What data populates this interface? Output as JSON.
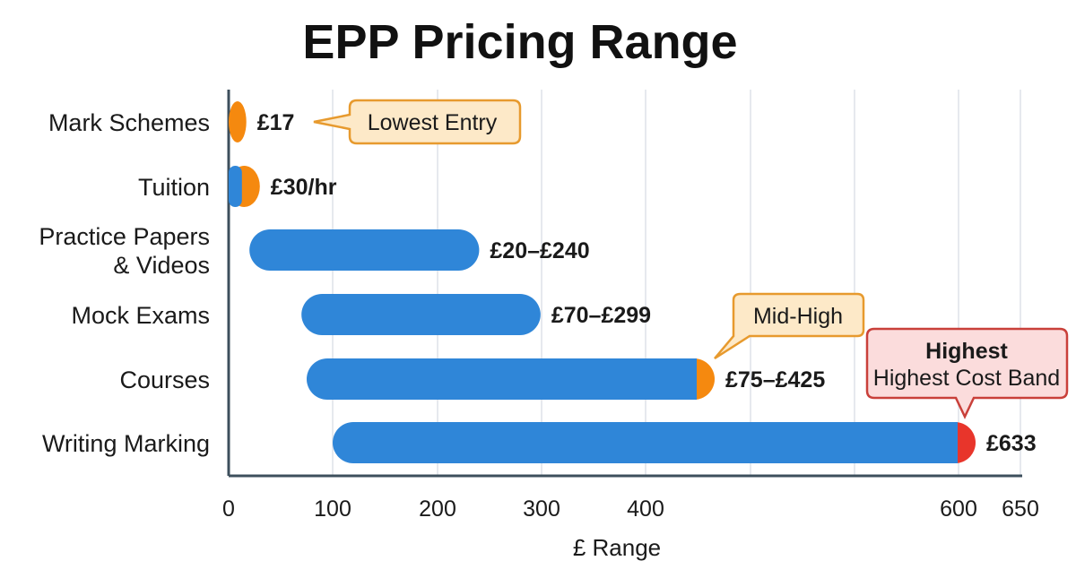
{
  "chart_data": {
    "type": "bar",
    "subtype": "floating-range-horizontal",
    "title": "EPP Pricing Range",
    "xlabel": "£ Range",
    "ylabel": "",
    "xticks": [
      0,
      100,
      200,
      300,
      400,
      600,
      650
    ],
    "xlim": [
      0,
      650
    ],
    "grid": true,
    "categories": [
      "Mark Schemes",
      "Tuition",
      "Practice Papers & Videos",
      "Mock Exams",
      "Courses",
      "Writing Marking"
    ],
    "category_lines": [
      [
        "Mark Schemes"
      ],
      [
        "Tuition"
      ],
      [
        "Practice Papers",
        "& Videos"
      ],
      [
        "Mock Exams"
      ],
      [
        "Courses"
      ],
      [
        "Writing Marking"
      ]
    ],
    "ranges": [
      [
        0,
        17
      ],
      [
        0,
        30
      ],
      [
        20,
        240
      ],
      [
        70,
        299
      ],
      [
        75,
        425
      ],
      [
        100,
        633
      ]
    ],
    "labels": [
      "£17",
      "£30/hr",
      "£20–£240",
      "£70–£299",
      "£75–£425",
      "£633"
    ],
    "cap_colors": [
      "#f5890f",
      "#f5890f",
      null,
      null,
      "#f5890f",
      "#e8352b"
    ],
    "bar_color": "#2f86d8",
    "callouts": [
      {
        "row": 0,
        "title": "",
        "text": "Lowest Entry",
        "fill": "#fde9c8",
        "stroke": "#e79a2e"
      },
      {
        "row": 4,
        "title": "",
        "text": "Mid-High",
        "fill": "#fde9c8",
        "stroke": "#e79a2e"
      },
      {
        "row": 5,
        "title": "Highest",
        "text": "Highest Cost Band",
        "fill": "#fbdcdc",
        "stroke": "#c9403a"
      }
    ]
  }
}
